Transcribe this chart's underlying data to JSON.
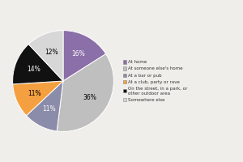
{
  "labels": [
    "At home",
    "At someone else's home",
    "At a bar or pub",
    "At a club, party or rave",
    "On the street, in a park, or other outdoor area",
    "Somewhere else"
  ],
  "values": [
    16,
    36,
    11,
    11,
    14,
    12
  ],
  "colors": [
    "#8B6FA8",
    "#C0BFBF",
    "#8B8BAA",
    "#F5A040",
    "#111111",
    "#D8D7D7"
  ],
  "pct_labels": [
    "16%",
    "36%",
    "11%",
    "11%",
    "14%",
    "12%"
  ],
  "legend_labels": [
    "At home",
    "At someone else's home",
    "At a bar or pub",
    "At a club, party or rave",
    "On the street, in a park, or\nother outdoor area",
    "Somewhere else"
  ],
  "startangle": 90,
  "background_color": "#F0EEEA",
  "label_colors": [
    "white",
    "black",
    "white",
    "black",
    "white",
    "black"
  ]
}
